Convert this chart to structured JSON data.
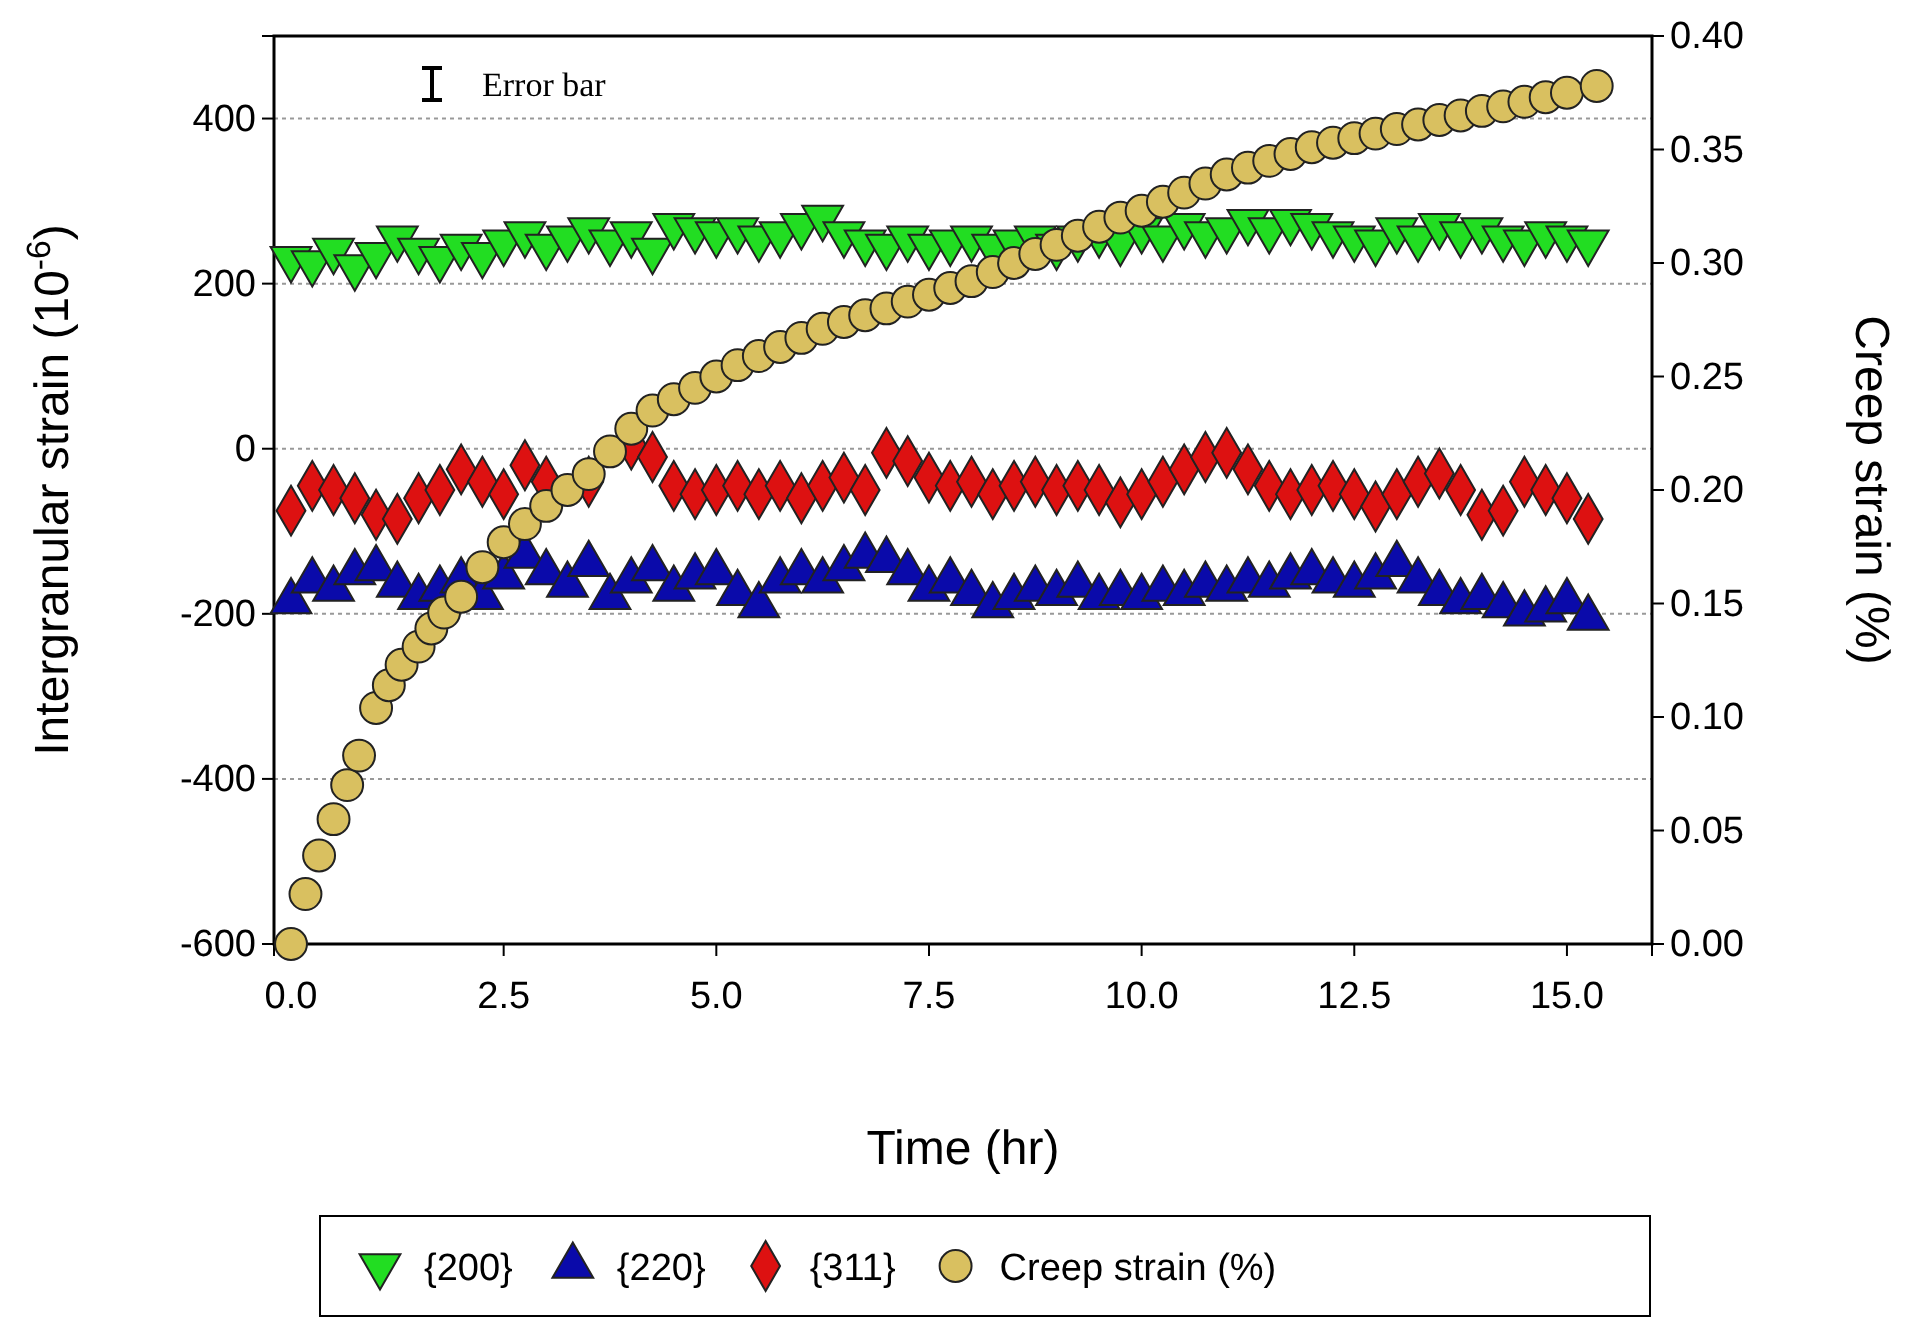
{
  "chart_data": {
    "type": "scatter",
    "xlabel": "Time (hr)",
    "ylabel": "Intergranular strain (10$^{-6}$)",
    "y2label": "Creep strain (%)",
    "annotations": [
      "Error bar"
    ],
    "xlim": [
      -0.2,
      16
    ],
    "ylim": [
      -600,
      500
    ],
    "y2lim": [
      0,
      0.4
    ],
    "xticks": [
      {
        "value": 0,
        "label": "0.0"
      },
      {
        "value": 2.5,
        "label": "2.5"
      },
      {
        "value": 5,
        "label": "5.0"
      },
      {
        "value": 7.5,
        "label": "7.5"
      },
      {
        "value": 10,
        "label": "10.0"
      },
      {
        "value": 12.5,
        "label": "12.5"
      },
      {
        "value": 15,
        "label": "15.0"
      }
    ],
    "yticks": [
      -600,
      -400,
      -200,
      0,
      200,
      400
    ],
    "y2ticks": [
      {
        "value": 0,
        "label": "0.00"
      },
      {
        "value": 0.05,
        "label": "0.05"
      },
      {
        "value": 0.1,
        "label": "0.10"
      },
      {
        "value": 0.15,
        "label": "0.15"
      },
      {
        "value": 0.2,
        "label": "0.20"
      },
      {
        "value": 0.25,
        "label": "0.25"
      },
      {
        "value": 0.3,
        "label": "0.30"
      },
      {
        "value": 0.35,
        "label": "0.35"
      },
      {
        "value": 0.4,
        "label": "0.40"
      }
    ],
    "grid": "y",
    "legend": "bottom",
    "x": [
      0,
      0.25,
      0.5,
      0.75,
      1,
      1.25,
      1.5,
      1.75,
      2,
      2.25,
      2.5,
      2.75,
      3,
      3.25,
      3.5,
      3.75,
      4,
      4.25,
      4.5,
      4.75,
      5,
      5.25,
      5.5,
      5.75,
      6,
      6.25,
      6.5,
      6.75,
      7,
      7.25,
      7.5,
      7.75,
      8,
      8.25,
      8.5,
      8.75,
      9,
      9.25,
      9.5,
      9.75,
      10,
      10.25,
      10.5,
      10.75,
      11,
      11.25,
      11.5,
      11.75,
      12,
      12.25,
      12.5,
      12.75,
      13,
      13.25,
      13.5,
      13.75,
      14,
      14.25,
      14.5,
      14.75,
      15,
      15.25
    ],
    "series": [
      {
        "name": "{200}",
        "color": "#22dd22",
        "marker": "triangle-down",
        "values": [
          230,
          225,
          240,
          220,
          235,
          255,
          240,
          230,
          245,
          235,
          250,
          260,
          245,
          255,
          265,
          250,
          260,
          240,
          270,
          265,
          260,
          265,
          255,
          260,
          270,
          280,
          260,
          250,
          245,
          255,
          245,
          250,
          255,
          245,
          250,
          255,
          245,
          255,
          260,
          250,
          265,
          255,
          270,
          260,
          265,
          275,
          265,
          275,
          270,
          260,
          255,
          250,
          265,
          255,
          270,
          260,
          265,
          255,
          250,
          260,
          255,
          250
        ]
      },
      {
        "name": "{220}",
        "color": "#0a0aaa",
        "marker": "triangle",
        "values": [
          -185,
          -160,
          -170,
          -150,
          -145,
          -165,
          -180,
          -170,
          -160,
          -180,
          -155,
          -130,
          -150,
          -165,
          -140,
          -180,
          -160,
          -145,
          -170,
          -155,
          -150,
          -175,
          -190,
          -160,
          -150,
          -160,
          -145,
          -130,
          -135,
          -150,
          -170,
          -160,
          -175,
          -190,
          -180,
          -170,
          -175,
          -165,
          -180,
          -175,
          -180,
          -170,
          -175,
          -165,
          -170,
          -160,
          -165,
          -155,
          -150,
          -160,
          -165,
          -155,
          -140,
          -160,
          -175,
          -185,
          -180,
          -190,
          -200,
          -195,
          -185,
          -205
        ]
      },
      {
        "name": "{311}",
        "color": "#dd1111",
        "marker": "diamond",
        "values": [
          -75,
          -45,
          -50,
          -60,
          -80,
          -85,
          -60,
          -50,
          -25,
          -40,
          -55,
          -20,
          -40,
          null,
          -40,
          null,
          5,
          -10,
          -45,
          -55,
          -50,
          -45,
          -55,
          -45,
          -60,
          -45,
          -35,
          -50,
          -5,
          -15,
          -35,
          -45,
          -40,
          -55,
          -45,
          -40,
          -50,
          -45,
          -50,
          -65,
          -55,
          -40,
          -25,
          -10,
          -5,
          -25,
          -45,
          -55,
          -50,
          -45,
          -55,
          -70,
          -55,
          -40,
          -30,
          -50,
          -80,
          -75,
          -40,
          -50,
          -60,
          -85
        ]
      },
      {
        "name": "Creep strain (%)",
        "color": "#d9c060",
        "marker": "circle",
        "axis": "y2",
        "x": [
          0,
          0.17,
          0.33,
          0.5,
          0.66,
          0.8,
          1.0,
          1.15,
          1.3,
          1.5,
          1.65,
          1.8,
          2.0,
          2.25,
          2.5,
          2.75,
          3.0,
          3.25,
          3.5,
          3.75,
          4.0,
          4.25,
          4.5,
          4.75,
          5.0,
          5.25,
          5.5,
          5.75,
          6.0,
          6.25,
          6.5,
          6.75,
          7.0,
          7.25,
          7.5,
          7.75,
          8,
          8.25,
          8.5,
          8.75,
          9,
          9.25,
          9.5,
          9.75,
          10,
          10.25,
          10.5,
          10.75,
          11,
          11.25,
          11.5,
          11.75,
          12,
          12.25,
          12.5,
          12.75,
          13,
          13.25,
          13.5,
          13.75,
          14,
          14.25,
          14.5,
          14.75,
          15,
          15.35
        ],
        "values": [
          0,
          0.022,
          0.039,
          0.055,
          0.07,
          0.083,
          0.104,
          0.114,
          0.123,
          0.131,
          0.139,
          0.146,
          0.153,
          0.166,
          0.177,
          0.185,
          0.193,
          0.2,
          0.207,
          0.217,
          0.227,
          0.235,
          0.24,
          0.245,
          0.25,
          0.255,
          0.259,
          0.263,
          0.267,
          0.271,
          0.274,
          0.277,
          0.28,
          0.283,
          0.286,
          0.289,
          0.292,
          0.296,
          0.3,
          0.304,
          0.308,
          0.312,
          0.316,
          0.32,
          0.323,
          0.327,
          0.331,
          0.335,
          0.339,
          0.342,
          0.345,
          0.348,
          0.351,
          0.353,
          0.355,
          0.357,
          0.359,
          0.361,
          0.363,
          0.365,
          0.367,
          0.369,
          0.371,
          0.373,
          0.375,
          0.378
        ]
      }
    ]
  }
}
